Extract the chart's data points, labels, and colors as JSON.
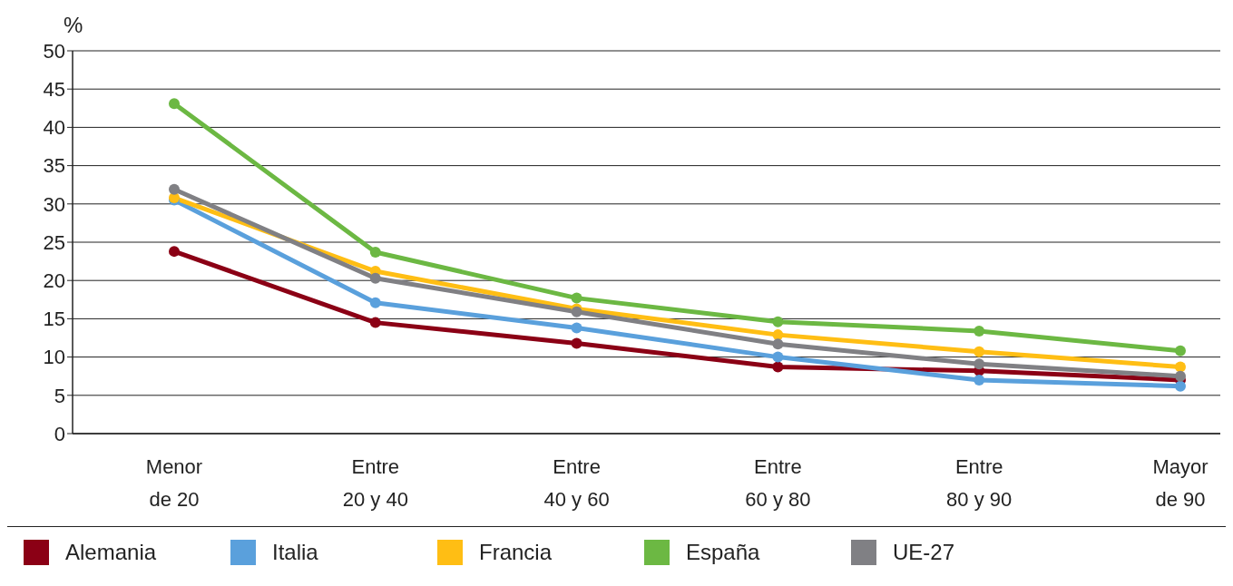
{
  "chart_data": {
    "type": "line",
    "ylabel": "%",
    "categories": [
      "Menor de 20",
      "Entre 20 y 40",
      "Entre 40 y 60",
      "Entre 60 y 80",
      "Entre 80 y 90",
      "Mayor de 90"
    ],
    "series": [
      {
        "name": "Alemania",
        "color": "#8b0015",
        "values": [
          23.8,
          14.5,
          11.8,
          8.7,
          8.2,
          7.0
        ]
      },
      {
        "name": "Italia",
        "color": "#5aa0dc",
        "values": [
          30.5,
          17.1,
          13.8,
          10.0,
          7.0,
          6.2
        ]
      },
      {
        "name": "Francia",
        "color": "#ffbe14",
        "values": [
          30.8,
          21.2,
          16.3,
          12.9,
          10.7,
          8.7
        ]
      },
      {
        "name": "España",
        "color": "#6cb843",
        "values": [
          43.1,
          23.7,
          17.7,
          14.6,
          13.4,
          10.8
        ]
      },
      {
        "name": "UE-27",
        "color": "#808084",
        "values": [
          31.9,
          20.3,
          15.9,
          11.7,
          9.1,
          7.5
        ]
      }
    ],
    "ylim": [
      0,
      50
    ],
    "yticks": [
      0,
      5,
      10,
      15,
      20,
      25,
      30,
      35,
      40,
      45,
      50
    ],
    "grid": "y",
    "legend": "bottom",
    "marker": "circle",
    "line_style": "solid"
  }
}
